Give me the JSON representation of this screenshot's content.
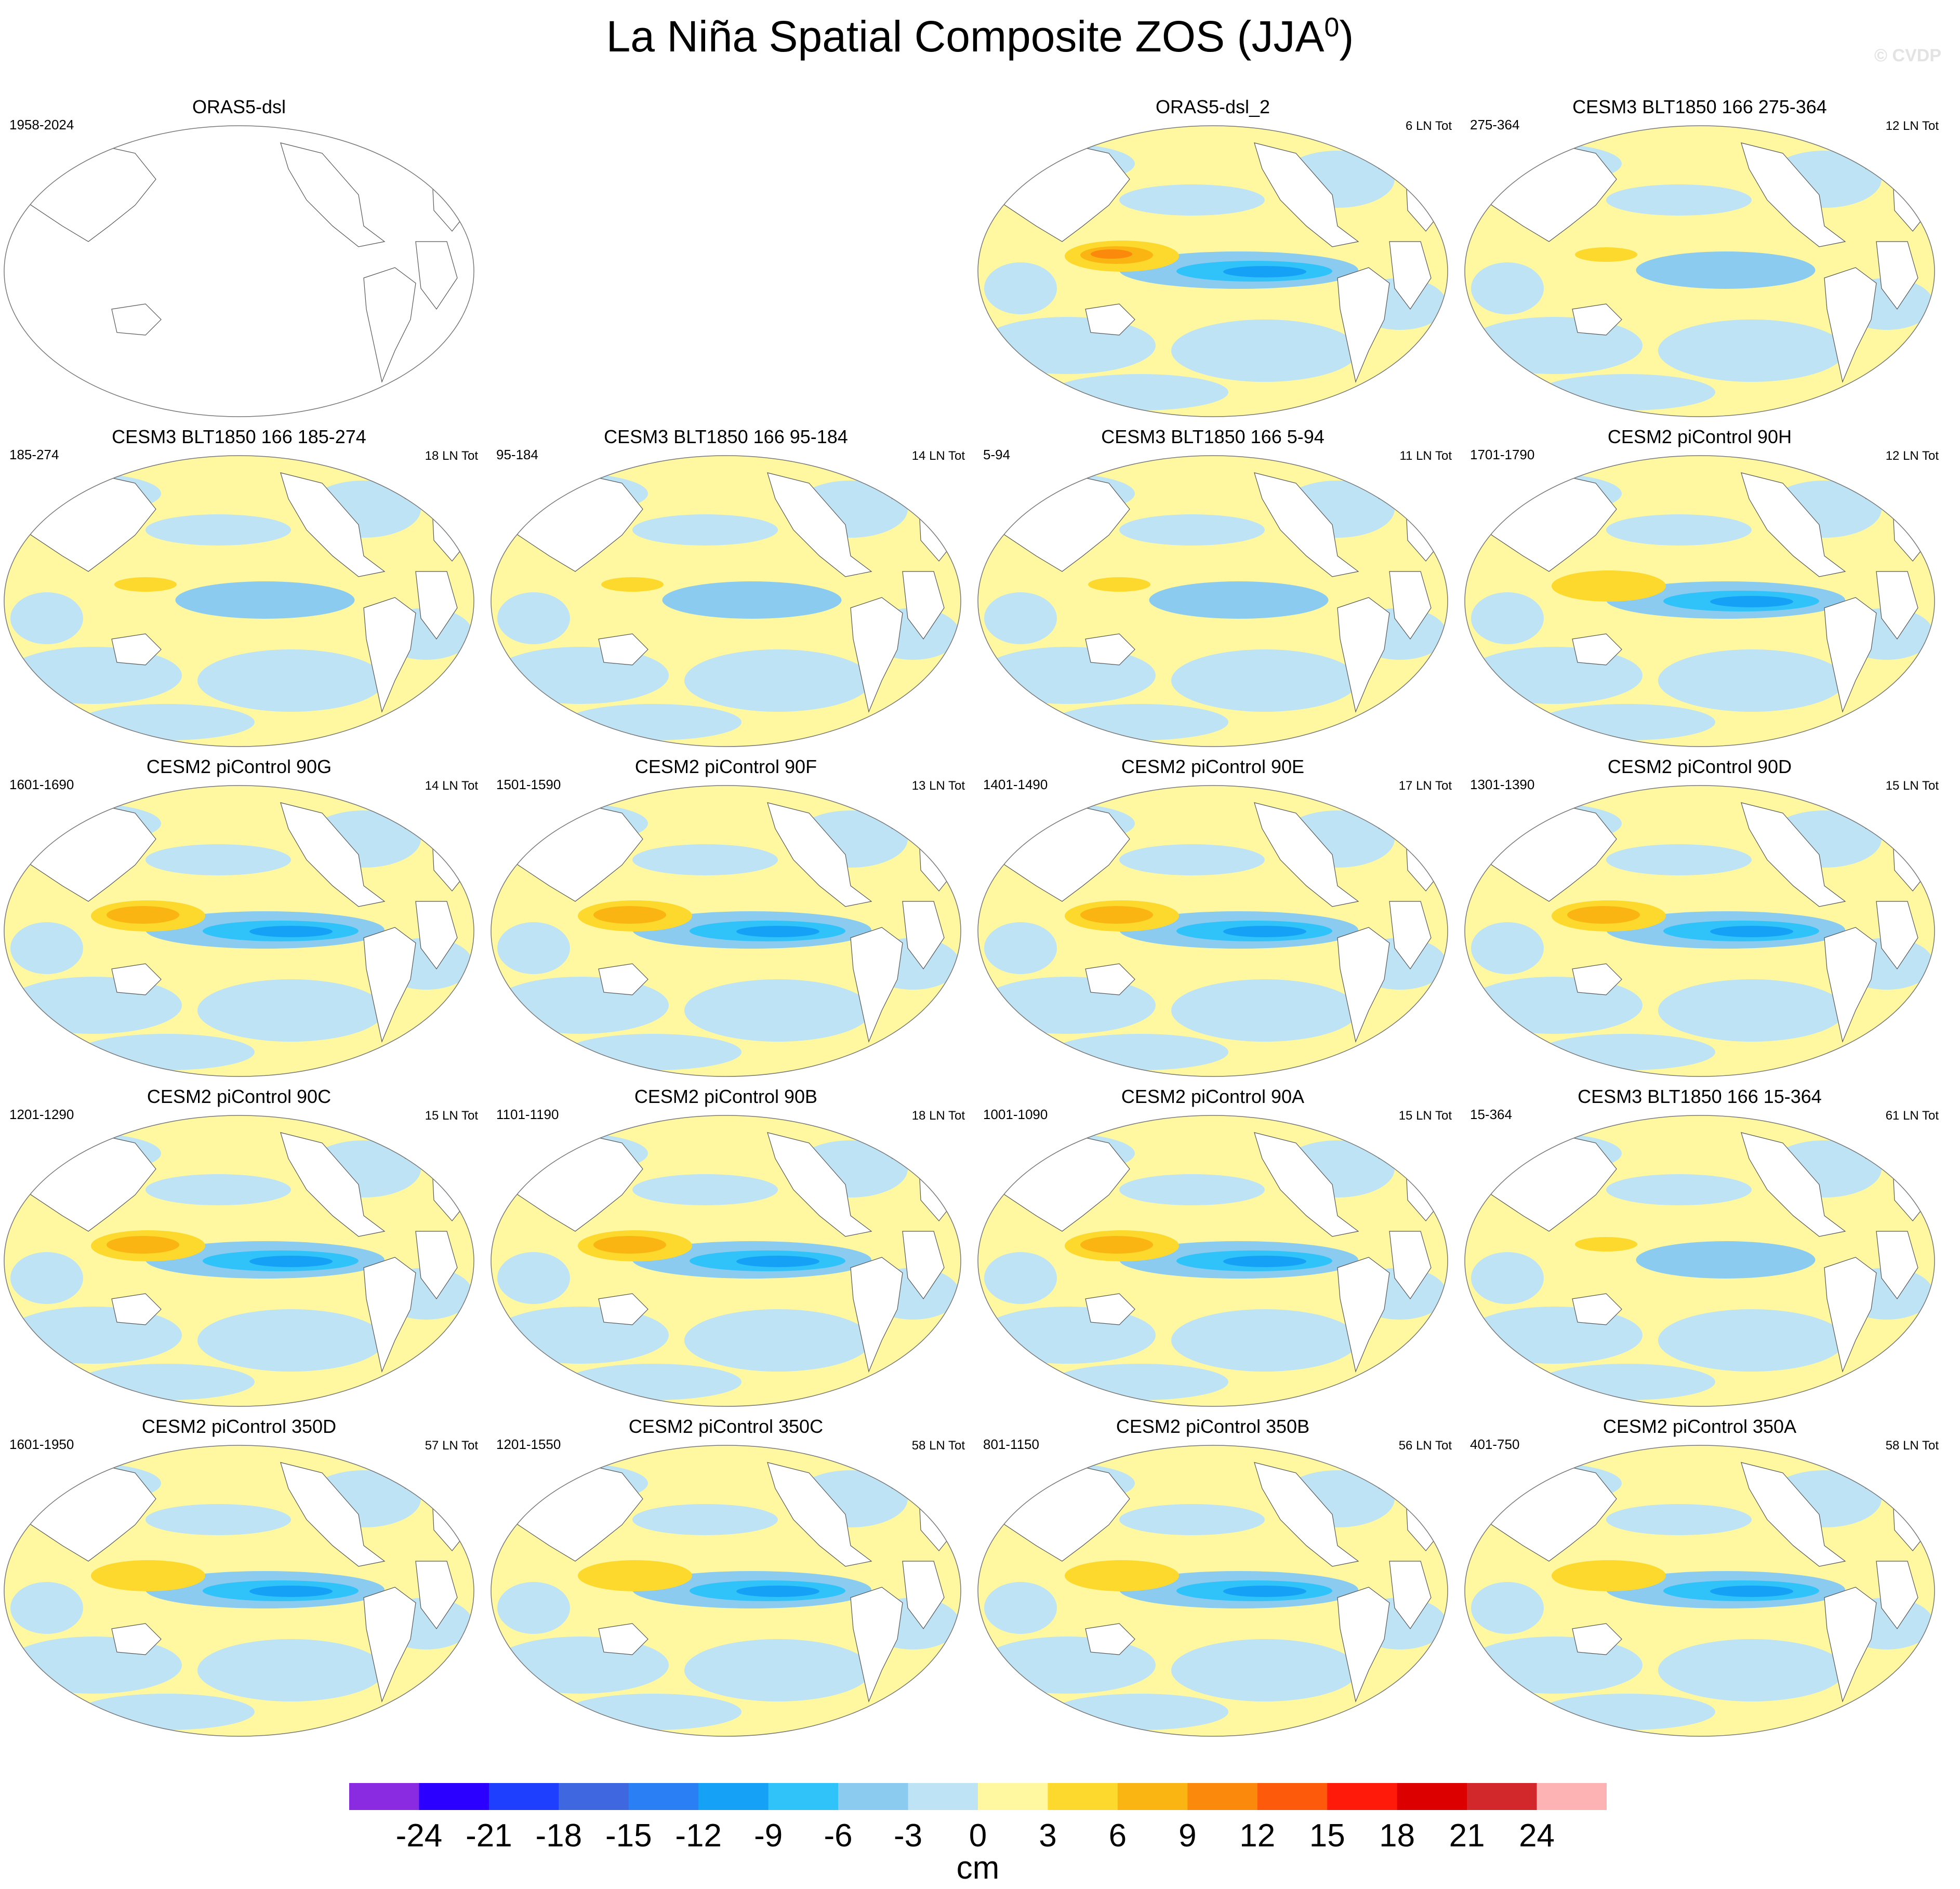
{
  "title": "La Niña Spatial Composite ZOS (JJA",
  "title_superscript": "0",
  "title_suffix": ")",
  "watermark": "© CVDP",
  "panels": [
    {
      "title": "ORAS5-dsl",
      "years": "1958-2024",
      "count": "",
      "empty": true
    },
    {
      "title": "ORAS5-dsl_2",
      "years": "",
      "count": "6 LN Tot",
      "pattern": "obs"
    },
    {
      "title": "CESM3 BLT1850 166 275-364",
      "years": "275-364",
      "count": "12 LN Tot",
      "pattern": "weak"
    },
    {
      "title": "CESM3 BLT1850 166 185-274",
      "years": "185-274",
      "count": "18 LN Tot",
      "pattern": "weak"
    },
    {
      "title": "CESM3 BLT1850 166 95-184",
      "years": "95-184",
      "count": "14 LN Tot",
      "pattern": "weak"
    },
    {
      "title": "CESM3 BLT1850 166 5-94",
      "years": "5-94",
      "count": "11 LN Tot",
      "pattern": "weak"
    },
    {
      "title": "CESM2 piControl 90H",
      "years": "1701-1790",
      "count": "12 LN Tot",
      "pattern": "mid"
    },
    {
      "title": "CESM2 piControl 90G",
      "years": "1601-1690",
      "count": "14 LN Tot",
      "pattern": "strong"
    },
    {
      "title": "CESM2 piControl 90F",
      "years": "1501-1590",
      "count": "13 LN Tot",
      "pattern": "strong"
    },
    {
      "title": "CESM2 piControl 90E",
      "years": "1401-1490",
      "count": "17 LN Tot",
      "pattern": "strong"
    },
    {
      "title": "CESM2 piControl 90D",
      "years": "1301-1390",
      "count": "15 LN Tot",
      "pattern": "strong"
    },
    {
      "title": "CESM2 piControl 90C",
      "years": "1201-1290",
      "count": "15 LN Tot",
      "pattern": "strong"
    },
    {
      "title": "CESM2 piControl 90B",
      "years": "1101-1190",
      "count": "18 LN Tot",
      "pattern": "strong"
    },
    {
      "title": "CESM2 piControl 90A",
      "years": "1001-1090",
      "count": "15 LN Tot",
      "pattern": "strong"
    },
    {
      "title": "CESM3 BLT1850 166 15-364",
      "years": "15-364",
      "count": "61 LN Tot",
      "pattern": "weak"
    },
    {
      "title": "CESM2 piControl 350D",
      "years": "1601-1950",
      "count": "57 LN Tot",
      "pattern": "mid"
    },
    {
      "title": "CESM2 piControl 350C",
      "years": "1201-1550",
      "count": "58 LN Tot",
      "pattern": "mid"
    },
    {
      "title": "CESM2 piControl 350B",
      "years": "801-1150",
      "count": "56 LN Tot",
      "pattern": "mid"
    },
    {
      "title": "CESM2 piControl 350A",
      "years": "401-750",
      "count": "58 LN Tot",
      "pattern": "mid"
    }
  ],
  "colorbar": {
    "colors": [
      "#8a2be2",
      "#2b00ff",
      "#1f3fff",
      "#3f67e0",
      "#2a7ff5",
      "#15a2f6",
      "#2fc3f9",
      "#8ccbf0",
      "#bde3f4",
      "#fff8a0",
      "#fcd92c",
      "#fbb513",
      "#fb8a0c",
      "#fd5a0b",
      "#ff1a0a",
      "#dd0000",
      "#d2282b",
      "#fdb3b4"
    ],
    "labels": [
      "-24",
      "-21",
      "-18",
      "-15",
      "-12",
      "-9",
      "-6",
      "-3",
      "0",
      "3",
      "6",
      "9",
      "12",
      "15",
      "18",
      "21",
      "24"
    ],
    "units": "cm"
  }
}
